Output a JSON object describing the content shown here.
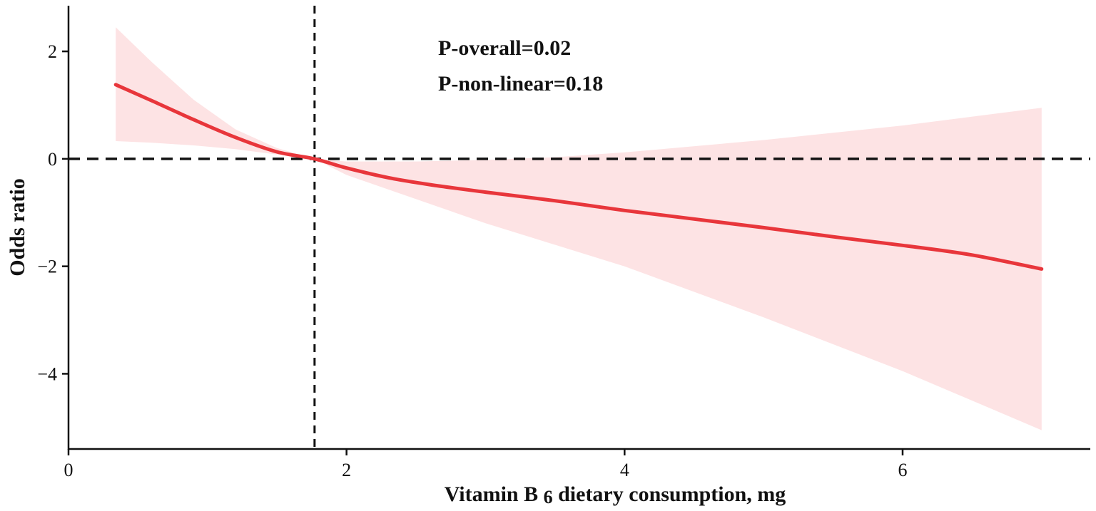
{
  "chart_data": {
    "type": "line",
    "title": "",
    "xlabel": "Vitamin B6 dietary consumption, mg",
    "ylabel": "Odds ratio",
    "xlim": [
      0,
      7.35
    ],
    "ylim": [
      -5.4,
      2.85
    ],
    "xticks": [
      0,
      2,
      4,
      6
    ],
    "yticks": [
      2,
      0,
      -2,
      -4
    ],
    "ytick_labels": [
      "2",
      "0",
      "−2",
      "−4"
    ],
    "reference_lines": {
      "horizontal_y": 0,
      "vertical_x": 1.77
    },
    "series": [
      {
        "name": "Odds ratio",
        "x": [
          0.34,
          0.6,
          0.9,
          1.2,
          1.5,
          1.77,
          2.0,
          2.3,
          2.6,
          3.0,
          3.5,
          4.0,
          4.5,
          5.0,
          5.5,
          6.0,
          6.5,
          7.0
        ],
        "values": [
          1.38,
          1.08,
          0.73,
          0.4,
          0.13,
          0.0,
          -0.17,
          -0.35,
          -0.48,
          -0.62,
          -0.78,
          -0.96,
          -1.12,
          -1.28,
          -1.45,
          -1.61,
          -1.79,
          -2.05
        ]
      },
      {
        "name": "95% CI upper",
        "x": [
          0.34,
          0.6,
          0.9,
          1.2,
          1.5,
          1.77,
          2.0,
          2.5,
          3.0,
          3.5,
          4.0,
          5.0,
          6.0,
          7.0
        ],
        "values": [
          2.45,
          1.8,
          1.1,
          0.55,
          0.2,
          0.0,
          -0.05,
          -0.05,
          -0.02,
          0.03,
          0.12,
          0.35,
          0.62,
          0.95
        ]
      },
      {
        "name": "95% CI lower",
        "x": [
          0.34,
          0.6,
          0.9,
          1.2,
          1.5,
          1.77,
          2.0,
          2.5,
          3.0,
          3.5,
          4.0,
          5.0,
          6.0,
          7.0
        ],
        "values": [
          0.33,
          0.3,
          0.25,
          0.18,
          0.08,
          0.0,
          -0.3,
          -0.75,
          -1.2,
          -1.6,
          -2.0,
          -2.95,
          -3.95,
          -5.05
        ]
      }
    ],
    "annotations": [
      "P-overall=0.02",
      "P-non-linear=0.18"
    ],
    "colors": {
      "line": "#e8363b",
      "ci_fill": "#fde3e4",
      "axis": "#111111",
      "reference": "#111111"
    }
  }
}
